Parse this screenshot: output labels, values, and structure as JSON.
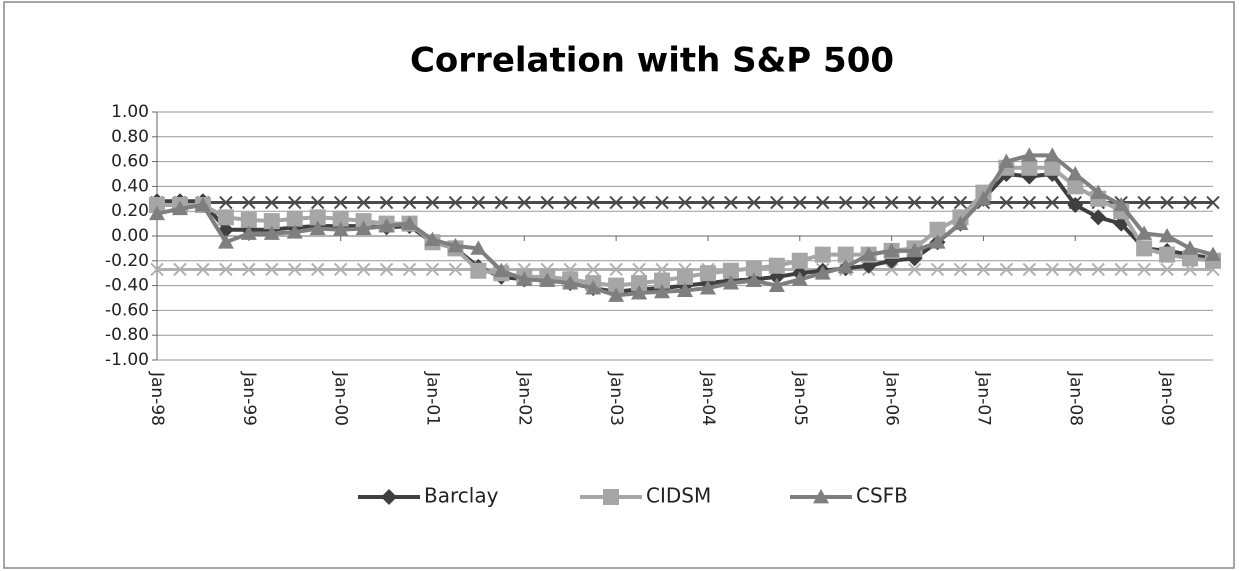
{
  "chart_data": {
    "type": "line",
    "title": "Correlation with S&P 500",
    "categories": [
      "Jan-98",
      null,
      null,
      null,
      "Jan-99",
      null,
      null,
      null,
      "Jan-00",
      null,
      null,
      null,
      "Jan-01",
      null,
      null,
      null,
      "Jan-02",
      null,
      null,
      null,
      "Jan-03",
      null,
      null,
      null,
      "Jan-04",
      null,
      null,
      null,
      "Jan-05",
      null,
      null,
      null,
      "Jan-06",
      null,
      null,
      null,
      "Jan-07",
      null,
      null,
      null,
      "Jan-08",
      null,
      null,
      null,
      "Jan-09",
      null,
      null
    ],
    "series": [
      {
        "name": "Barclay",
        "color": "#3f3f3f",
        "marker": "diamond",
        "values": [
          0.28,
          0.28,
          0.28,
          0.05,
          0.05,
          0.05,
          0.07,
          0.08,
          0.08,
          0.08,
          0.07,
          0.08,
          -0.05,
          -0.1,
          -0.25,
          -0.33,
          -0.35,
          -0.35,
          -0.38,
          -0.42,
          -0.45,
          -0.43,
          -0.42,
          -0.4,
          -0.38,
          -0.36,
          -0.35,
          -0.33,
          -0.3,
          -0.28,
          -0.26,
          -0.24,
          -0.2,
          -0.18,
          -0.05,
          0.1,
          0.3,
          0.5,
          0.48,
          0.5,
          0.25,
          0.15,
          0.1,
          -0.1,
          -0.12,
          -0.15,
          -0.18
        ]
      },
      {
        "name": "CIDSM",
        "color": "#a6a6a6",
        "marker": "square",
        "values": [
          0.25,
          0.25,
          0.25,
          0.15,
          0.13,
          0.12,
          0.14,
          0.15,
          0.14,
          0.12,
          0.1,
          0.1,
          -0.05,
          -0.1,
          -0.28,
          -0.3,
          -0.33,
          -0.33,
          -0.35,
          -0.38,
          -0.4,
          -0.38,
          -0.36,
          -0.33,
          -0.3,
          -0.28,
          -0.26,
          -0.24,
          -0.2,
          -0.15,
          -0.15,
          -0.15,
          -0.12,
          -0.1,
          0.05,
          0.15,
          0.35,
          0.55,
          0.55,
          0.55,
          0.4,
          0.3,
          0.2,
          -0.1,
          -0.15,
          -0.18,
          -0.2
        ]
      },
      {
        "name": "CSFB",
        "color": "#7f7f7f",
        "marker": "triangle",
        "values": [
          0.18,
          0.22,
          0.25,
          -0.05,
          0.02,
          0.02,
          0.03,
          0.06,
          0.05,
          0.06,
          0.08,
          0.1,
          -0.03,
          -0.08,
          -0.1,
          -0.28,
          -0.35,
          -0.36,
          -0.38,
          -0.42,
          -0.48,
          -0.46,
          -0.45,
          -0.44,
          -0.42,
          -0.38,
          -0.36,
          -0.4,
          -0.35,
          -0.3,
          -0.25,
          -0.15,
          -0.12,
          -0.12,
          -0.05,
          0.1,
          0.3,
          0.6,
          0.65,
          0.65,
          0.5,
          0.35,
          0.25,
          0.02,
          0,
          -0.1,
          -0.15
        ]
      }
    ],
    "reference_lines": [
      {
        "value": 0.27,
        "color": "#4a4a4a"
      },
      {
        "value": -0.27,
        "color": "#b0b0b0"
      }
    ],
    "ylim": [
      -1,
      1
    ],
    "yticks": [
      {
        "value": -1,
        "label": "-1.00"
      },
      {
        "value": -0.8,
        "label": "-0.80"
      },
      {
        "value": -0.6,
        "label": "-0.60"
      },
      {
        "value": -0.4,
        "label": "-0.40"
      },
      {
        "value": -0.2,
        "label": "-0.20"
      },
      {
        "value": 0,
        "label": "0.00"
      },
      {
        "value": 0.2,
        "label": "0.20"
      },
      {
        "value": 0.4,
        "label": "0.40"
      },
      {
        "value": 0.6,
        "label": "0.60"
      },
      {
        "value": 0.8,
        "label": "0.80"
      },
      {
        "value": 1,
        "label": "1.00"
      }
    ],
    "grid": true,
    "legend": "bottom"
  }
}
